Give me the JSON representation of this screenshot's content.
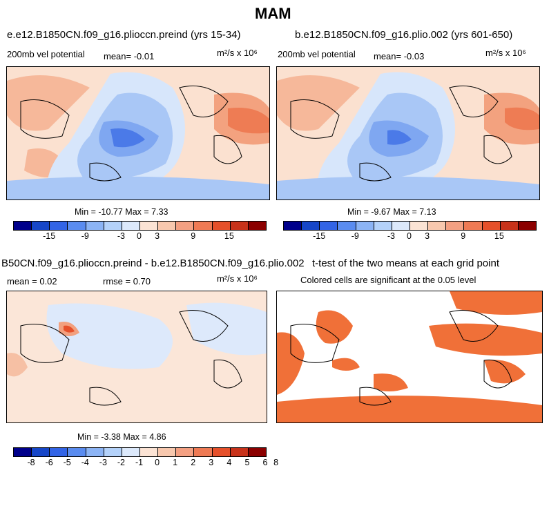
{
  "figure_title": "MAM",
  "panels": [
    {
      "title": "e.e12.B1850CN.f09_g16.plioccn.preind (yrs 15-34)",
      "left_label": "200mb vel potential",
      "mean_text": "mean=   -0.01",
      "units": "m²/s x 10⁶",
      "stats": "Min = -10.77 Max =   7.33"
    },
    {
      "title": "b.e12.B1850CN.f09_g16.plio.002 (yrs 601-650)",
      "left_label": "200mb vel potential",
      "mean_text": "mean=  -0.03",
      "units": "m²/s x 10⁶",
      "stats": "Min =  -9.67 Max =   7.13"
    },
    {
      "title": "B50CN.f09_g16.plioccn.preind - b.e12.B1850CN.f09_g16.plio.002",
      "left_label": "mean =    0.02",
      "rmse_text": "rmse =    0.70",
      "units": "m²/s x 10⁶",
      "stats": "Min =  -3.38 Max =   4.86"
    },
    {
      "title": "t-test of the two means at each grid point",
      "subtitle": "Colored cells are significant at the 0.05 level"
    }
  ],
  "colorbar_main": {
    "colors": [
      "#00008b",
      "#1646c8",
      "#3264e6",
      "#5a8cf0",
      "#8cb4f5",
      "#b4d2fa",
      "#dce9fb",
      "#fbe3d4",
      "#f8c8ae",
      "#f4a082",
      "#ef7a54",
      "#e6502a",
      "#c8321a",
      "#8b0000"
    ],
    "tick_labels": [
      "-15",
      "-9",
      "-3",
      "0",
      "3",
      "9",
      "15"
    ]
  },
  "colorbar_diff": {
    "colors": [
      "#00008b",
      "#1646c8",
      "#3264e6",
      "#5a8cf0",
      "#8cb4f5",
      "#b4d2fa",
      "#dce9fb",
      "#fbe3d4",
      "#f8c8ae",
      "#f4a082",
      "#ef7a54",
      "#e6502a",
      "#c8321a",
      "#8b0000"
    ],
    "tick_labels": [
      "-8",
      "-6",
      "-5",
      "-4",
      "-3",
      "-2",
      "-1",
      "0",
      "1",
      "2",
      "3",
      "4",
      "5",
      "6",
      "8"
    ]
  },
  "significance_color": "#f07038"
}
